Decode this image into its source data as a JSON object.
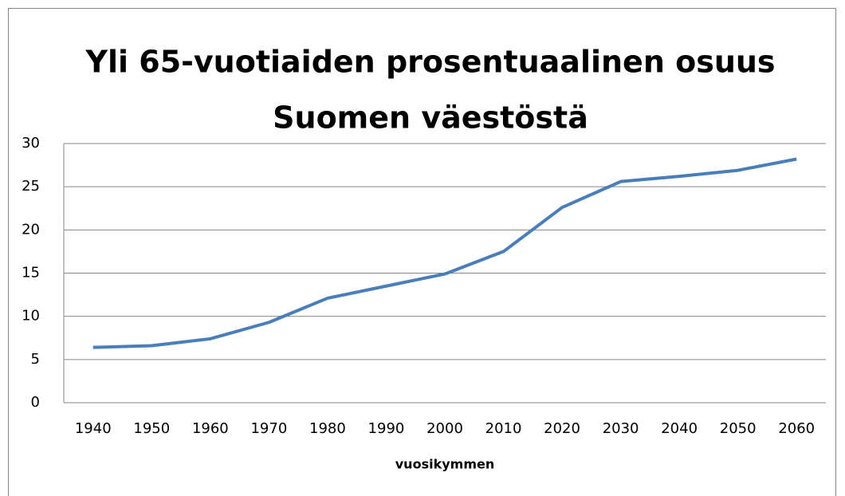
{
  "chart_data": {
    "type": "line",
    "title": [
      "Yli 65-vuotiaiden prosentuaalinen osuus",
      "Suomen väestöstä"
    ],
    "x_label": "vuosikymmen",
    "categories": [
      "1940",
      "1950",
      "1960",
      "1970",
      "1980",
      "1990",
      "2000",
      "2010",
      "2020",
      "2030",
      "2040",
      "2050",
      "2060"
    ],
    "series": [
      {
        "color": "#4a7ebb",
        "values": [
          6.4,
          6.6,
          7.4,
          9.3,
          12.1,
          13.5,
          14.9,
          17.5,
          22.6,
          25.6,
          26.2,
          26.9,
          28.2
        ]
      }
    ],
    "ylim": [
      0,
      30
    ],
    "yticks": [
      0,
      5,
      10,
      15,
      20,
      25,
      30
    ],
    "grid": true
  }
}
